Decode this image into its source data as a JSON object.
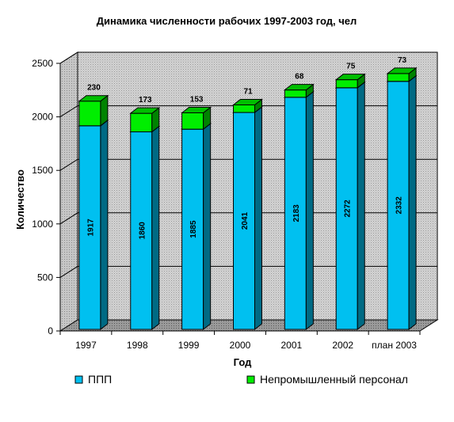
{
  "chart_data": {
    "type": "bar",
    "stacked": true,
    "three_d": true,
    "title": "Динамика численности рабочих 1997-2003 год, чел",
    "xlabel": "Год",
    "ylabel": "Количество",
    "ylim": [
      0,
      2500
    ],
    "yticks": [
      "0",
      "500",
      "1000",
      "1500",
      "2000",
      "2500"
    ],
    "grid": true,
    "legend_position": "bottom",
    "categories": [
      "1997",
      "1998",
      "1999",
      "2000",
      "2001",
      "2002",
      "план 2003"
    ],
    "series": [
      {
        "name": "ППП",
        "color": "#00c0f0",
        "values": [
          1917,
          1860,
          1885,
          2041,
          2183,
          2272,
          2332
        ]
      },
      {
        "name": "Непромышленный персонал",
        "color": "#00ee00",
        "values": [
          230,
          173,
          153,
          71,
          68,
          75,
          73
        ]
      }
    ]
  }
}
